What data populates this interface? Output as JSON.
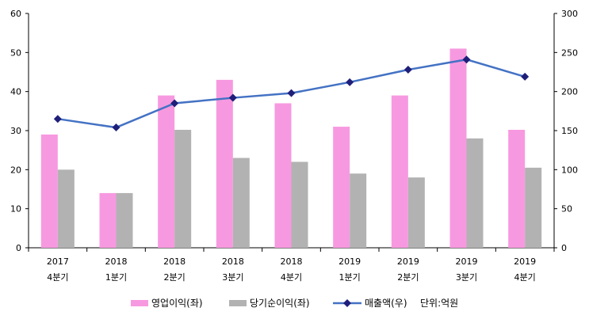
{
  "chart_data": {
    "type": "bar",
    "categories": [
      [
        "2017",
        "4분기"
      ],
      [
        "2018",
        "1분기"
      ],
      [
        "2018",
        "2분기"
      ],
      [
        "2018",
        "3분기"
      ],
      [
        "2018",
        "4분기"
      ],
      [
        "2019",
        "1분기"
      ],
      [
        "2019",
        "2분기"
      ],
      [
        "2019",
        "3분기"
      ],
      [
        "2019",
        "4분기"
      ]
    ],
    "series": [
      {
        "name": "영업이익(좌)",
        "kind": "bar",
        "axis": "left",
        "color": "#F799E0",
        "values": [
          29,
          14,
          39,
          43,
          37,
          31,
          39,
          51,
          30.2
        ]
      },
      {
        "name": "당기순이익(좌)",
        "kind": "bar",
        "axis": "left",
        "color": "#B2B2B2",
        "values": [
          20,
          14,
          30.2,
          23,
          22,
          19,
          18,
          28,
          20.5
        ]
      },
      {
        "name": "매출액(우)",
        "kind": "line",
        "axis": "right",
        "color": "#4472C4",
        "marker_color": "#1F1F7A",
        "values": [
          165,
          154,
          185,
          192,
          198,
          212,
          228,
          241,
          219
        ]
      }
    ],
    "y_left": {
      "min": 0,
      "max": 60,
      "ticks": [
        "0",
        "10",
        "20",
        "30",
        "40",
        "50",
        "60"
      ]
    },
    "y_right": {
      "min": 0,
      "max": 300,
      "ticks": [
        "0",
        "50",
        "100",
        "150",
        "200",
        "250",
        "300"
      ]
    },
    "unit_note": "단위:억원",
    "legend_position": "bottom",
    "grid": false
  }
}
